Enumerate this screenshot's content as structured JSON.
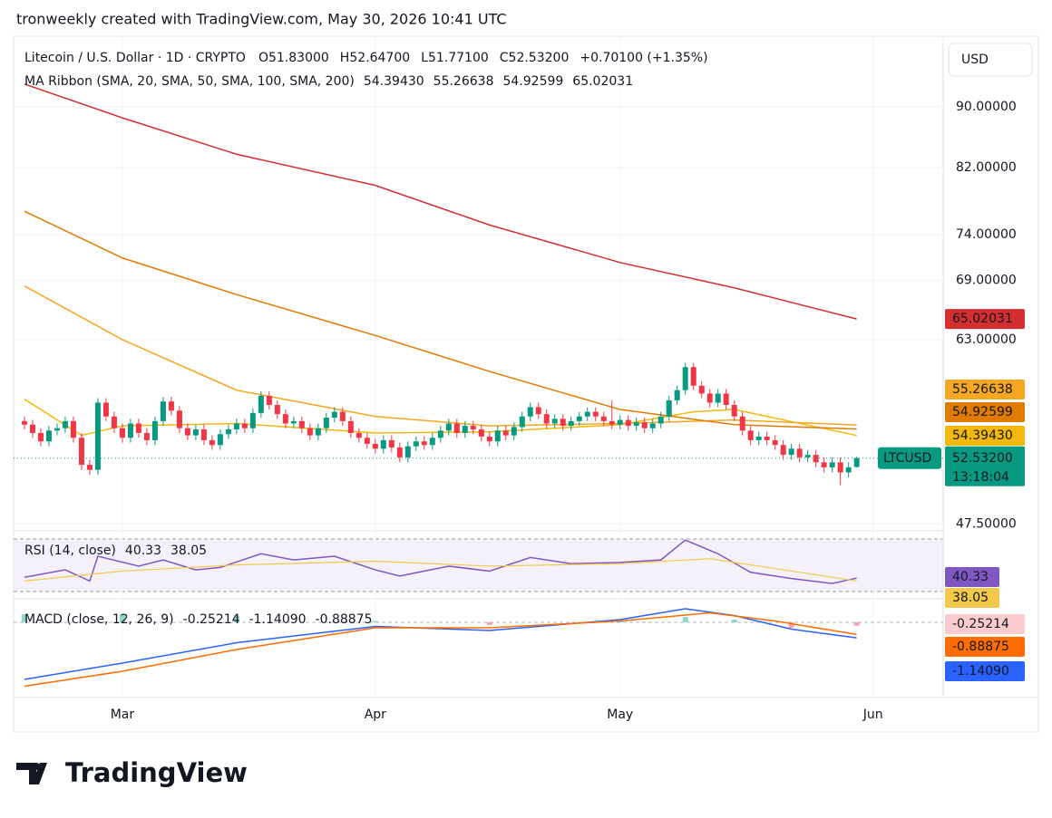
{
  "header": {
    "attribution": "tronweekly created with TradingView.com, May 30, 2026 10:41 UTC"
  },
  "footer": {
    "brand": "TradingView"
  },
  "chart_data": [
    {
      "type": "candlestick",
      "title": "Litecoin / U.S. Dollar · 1D · CRYPTO",
      "currency": "USD",
      "ohlc_legend": [
        {
          "label": "O",
          "value": "51.83000"
        },
        {
          "label": "H",
          "value": "52.64700"
        },
        {
          "label": "L",
          "value": "51.77100"
        },
        {
          "label": "C",
          "value": "52.53200"
        }
      ],
      "change": "+0.70100 (+1.35%)",
      "symbol": "LTCUSD",
      "countdown": "13:18:04",
      "last_label": "52.53200",
      "up_color": "#089981",
      "down_color": "#f23645",
      "log_scale": true,
      "xlim": [
        -1.33,
        112.6
      ],
      "xticks": [
        {
          "value": 12,
          "label": "Mar"
        },
        {
          "value": 43,
          "label": "Apr"
        },
        {
          "value": 73,
          "label": "May"
        },
        {
          "value": 104,
          "label": "Jun"
        }
      ],
      "ylim": [
        47.06,
        99.6
      ],
      "yticks": [
        {
          "value": 90,
          "label": "90.00000"
        },
        {
          "value": 82,
          "label": "82.00000"
        },
        {
          "value": 74,
          "label": "74.00000"
        },
        {
          "value": 69,
          "label": "69.00000"
        },
        {
          "value": 63,
          "label": "63.00000"
        },
        {
          "value": 47.5,
          "label": "47.50000"
        }
      ],
      "grid": true,
      "open": [
        55.6,
        55.3,
        54.6,
        53.9,
        54.8,
        55.0,
        55.6,
        54.2,
        52.0,
        51.6,
        57.2,
        56.0,
        55.0,
        54.2,
        55.4,
        54.6,
        54.0,
        55.6,
        57.3,
        56.5,
        55.0,
        54.4,
        54.9,
        54.0,
        53.6,
        54.5,
        54.9,
        55.4,
        55.0,
        56.3,
        57.8,
        57.0,
        56.2,
        55.4,
        55.6,
        55.0,
        54.4,
        55.0,
        55.9,
        56.4,
        55.6,
        54.6,
        54.2,
        53.7,
        53.3,
        54.0,
        53.4,
        52.6,
        53.5,
        53.9,
        53.6,
        54.2,
        54.8,
        55.4,
        54.6,
        55.2,
        54.9,
        54.3,
        53.9,
        54.8,
        54.4,
        55.1,
        56.0,
        56.8,
        56.2,
        55.4,
        55.8,
        55.2,
        55.6,
        56.0,
        56.4,
        56.0,
        55.6,
        55.3,
        55.7,
        55.2,
        55.5,
        55.0,
        55.4,
        56.0,
        57.4,
        58.3,
        60.4,
        58.7,
        58.0,
        57.2,
        58.0,
        57.0,
        56.0,
        54.8,
        54.0,
        54.3,
        54.0,
        53.6,
        52.8,
        53.3,
        52.6,
        52.8,
        52.2,
        51.8,
        52.2,
        51.4,
        51.83
      ],
      "high": [
        56.0,
        55.7,
        55.0,
        55.2,
        55.4,
        56.0,
        56.0,
        54.6,
        52.4,
        57.6,
        57.6,
        56.4,
        55.4,
        55.8,
        55.8,
        55.0,
        56.0,
        57.7,
        57.7,
        56.9,
        55.4,
        55.3,
        55.3,
        54.4,
        54.9,
        55.3,
        55.8,
        55.8,
        56.7,
        58.2,
        58.2,
        57.4,
        56.6,
        56.0,
        56.0,
        55.4,
        55.4,
        56.3,
        56.8,
        56.8,
        56.0,
        55.0,
        54.6,
        54.1,
        54.4,
        54.4,
        53.8,
        53.9,
        54.3,
        54.3,
        54.6,
        55.2,
        55.8,
        55.8,
        55.6,
        55.6,
        55.3,
        54.7,
        55.2,
        55.2,
        55.5,
        56.4,
        57.2,
        57.2,
        56.6,
        56.2,
        56.2,
        56.0,
        56.4,
        56.8,
        56.8,
        56.4,
        57.4,
        56.1,
        56.1,
        55.9,
        55.9,
        55.8,
        56.4,
        57.8,
        58.7,
        60.8,
        60.8,
        59.1,
        58.4,
        58.4,
        58.4,
        57.4,
        56.4,
        55.2,
        54.7,
        54.7,
        54.4,
        54.0,
        53.7,
        53.7,
        53.2,
        53.2,
        52.6,
        52.6,
        52.6,
        52.2,
        52.647
      ],
      "low": [
        54.9,
        54.2,
        53.5,
        53.5,
        54.4,
        54.6,
        53.8,
        51.6,
        51.2,
        51.2,
        55.6,
        54.6,
        53.8,
        53.8,
        54.2,
        53.6,
        53.6,
        55.2,
        56.1,
        54.6,
        54.0,
        54.0,
        53.6,
        53.2,
        53.2,
        54.1,
        54.5,
        54.6,
        54.6,
        55.9,
        56.6,
        55.8,
        55.0,
        55.0,
        54.6,
        54.0,
        54.0,
        54.6,
        55.5,
        55.2,
        54.2,
        53.8,
        53.3,
        52.9,
        52.9,
        53.0,
        52.2,
        52.2,
        53.1,
        53.2,
        53.2,
        53.8,
        54.4,
        54.2,
        54.2,
        54.5,
        53.9,
        53.5,
        53.5,
        54.0,
        54.0,
        54.7,
        55.6,
        55.8,
        55.0,
        55.0,
        54.8,
        54.8,
        55.2,
        55.6,
        55.6,
        55.2,
        54.9,
        54.9,
        54.8,
        54.8,
        54.6,
        54.6,
        55.0,
        55.6,
        57.0,
        57.9,
        58.3,
        57.6,
        56.8,
        56.8,
        56.6,
        55.6,
        54.4,
        53.6,
        53.6,
        53.6,
        53.2,
        52.4,
        52.4,
        52.2,
        52.2,
        51.8,
        51.4,
        51.4,
        50.4,
        51.0,
        51.771
      ],
      "close": [
        55.3,
        54.6,
        53.9,
        54.8,
        55.0,
        55.6,
        54.2,
        52.0,
        51.6,
        57.2,
        56.0,
        55.0,
        54.2,
        55.4,
        54.6,
        54.0,
        55.6,
        57.3,
        56.5,
        55.0,
        54.4,
        54.9,
        54.0,
        53.6,
        54.5,
        54.9,
        55.4,
        55.0,
        56.3,
        57.8,
        57.0,
        56.2,
        55.4,
        55.6,
        55.0,
        54.4,
        55.0,
        55.9,
        56.4,
        55.6,
        54.6,
        54.2,
        53.7,
        53.3,
        54.0,
        53.4,
        52.6,
        53.5,
        53.9,
        53.6,
        54.2,
        54.8,
        55.4,
        54.6,
        55.2,
        54.9,
        54.3,
        53.9,
        54.8,
        54.4,
        55.1,
        56.0,
        56.8,
        56.2,
        55.4,
        55.8,
        55.2,
        55.6,
        56.0,
        56.4,
        56.0,
        55.6,
        55.3,
        55.7,
        55.2,
        55.5,
        55.0,
        55.4,
        56.0,
        57.4,
        58.3,
        60.4,
        58.7,
        58.0,
        57.2,
        58.0,
        57.0,
        56.0,
        54.8,
        54.0,
        54.3,
        54.0,
        53.6,
        52.8,
        53.3,
        52.6,
        52.8,
        52.2,
        51.8,
        52.2,
        51.4,
        51.8,
        52.532
      ],
      "overlay": {
        "name": "MA Ribbon (SMA, 20, SMA, 50, SMA, 100, SMA, 200)",
        "series": [
          {
            "color": "#f2b90c",
            "x": [
              0,
              7,
              12,
              26,
              43,
              57,
              73,
              82,
              87,
              102
            ],
            "values": [
              57.5,
              54.4,
              55.2,
              55.4,
              54.6,
              54.7,
              55.3,
              56.4,
              56.6,
              54.3943
            ],
            "last_label": "54.39430"
          },
          {
            "color": "#f5a623",
            "x": [
              0,
              12,
              26,
              43,
              57,
              73,
              87,
              102
            ],
            "values": [
              68.4,
              63.0,
              58.3,
              56.0,
              55.2,
              55.4,
              55.7,
              55.26638
            ],
            "last_label": "55.26638"
          },
          {
            "color": "#e07b00",
            "x": [
              0,
              12,
              26,
              43,
              57,
              73,
              87,
              102
            ],
            "values": [
              76.7,
              71.4,
              67.5,
              63.4,
              60.0,
              56.6,
              55.3,
              54.92599
            ],
            "last_label": "54.92599"
          },
          {
            "color": "#d32f2f",
            "x": [
              0,
              12,
              26,
              43,
              57,
              73,
              87,
              102
            ],
            "values": [
              93.2,
              88.5,
              83.7,
              79.8,
              75.1,
              70.9,
              68.2,
              65.02031
            ],
            "last_label": "65.02031"
          }
        ]
      }
    },
    {
      "type": "line",
      "title": "RSI (14, close)",
      "ylim": [
        24.4,
        77
      ],
      "series": [
        {
          "color": "#7e57c2",
          "x": [
            0,
            5,
            8,
            9,
            14,
            17,
            21,
            24,
            29,
            33,
            38,
            43,
            46,
            52,
            57,
            62,
            67,
            73,
            78,
            81,
            85,
            89,
            94,
            99,
            102
          ],
          "values": [
            41,
            47,
            38,
            58,
            50,
            55,
            47,
            49,
            60,
            55,
            58,
            47,
            42,
            50,
            46,
            57,
            52,
            53,
            55,
            71,
            60,
            45,
            40,
            36,
            40.33
          ]
        },
        {
          "color": "#f2c94c",
          "x": [
            0,
            12,
            26,
            43,
            57,
            73,
            84,
            92,
            102
          ],
          "values": [
            38,
            46,
            51,
            54,
            50,
            52,
            56,
            48,
            38.05
          ]
        }
      ]
    },
    {
      "type": "macd",
      "title": "MACD (close, 12, 26, 9)",
      "ylim": [
        -5.2,
        1.47
      ],
      "histogram": {
        "up_color": "#8fd6c8",
        "down_color": "#f5a3ab",
        "x": [
          0,
          12,
          26,
          43,
          57,
          73,
          81,
          87,
          94,
          102
        ],
        "values": [
          0.6,
          0.6,
          0.5,
          0.1,
          -0.2,
          0.1,
          0.4,
          0.2,
          -0.4,
          -0.25214
        ],
        "last_label": "-0.25214"
      },
      "series": [
        {
          "color": "#2962ff",
          "x": [
            0,
            12,
            26,
            43,
            57,
            73,
            81,
            87,
            94,
            102
          ],
          "values": [
            -4.2,
            -3.0,
            -1.5,
            -0.3,
            -0.6,
            0.2,
            1.0,
            0.5,
            -0.5,
            -1.1409
          ],
          "last_label": "-1.14090"
        },
        {
          "color": "#ff6d00",
          "x": [
            0,
            12,
            26,
            43,
            57,
            73,
            84,
            92,
            102
          ],
          "values": [
            -4.7,
            -3.6,
            -2.0,
            -0.4,
            -0.4,
            0.1,
            0.7,
            0.1,
            -0.88875
          ],
          "last_label": "-0.88875"
        }
      ]
    }
  ]
}
